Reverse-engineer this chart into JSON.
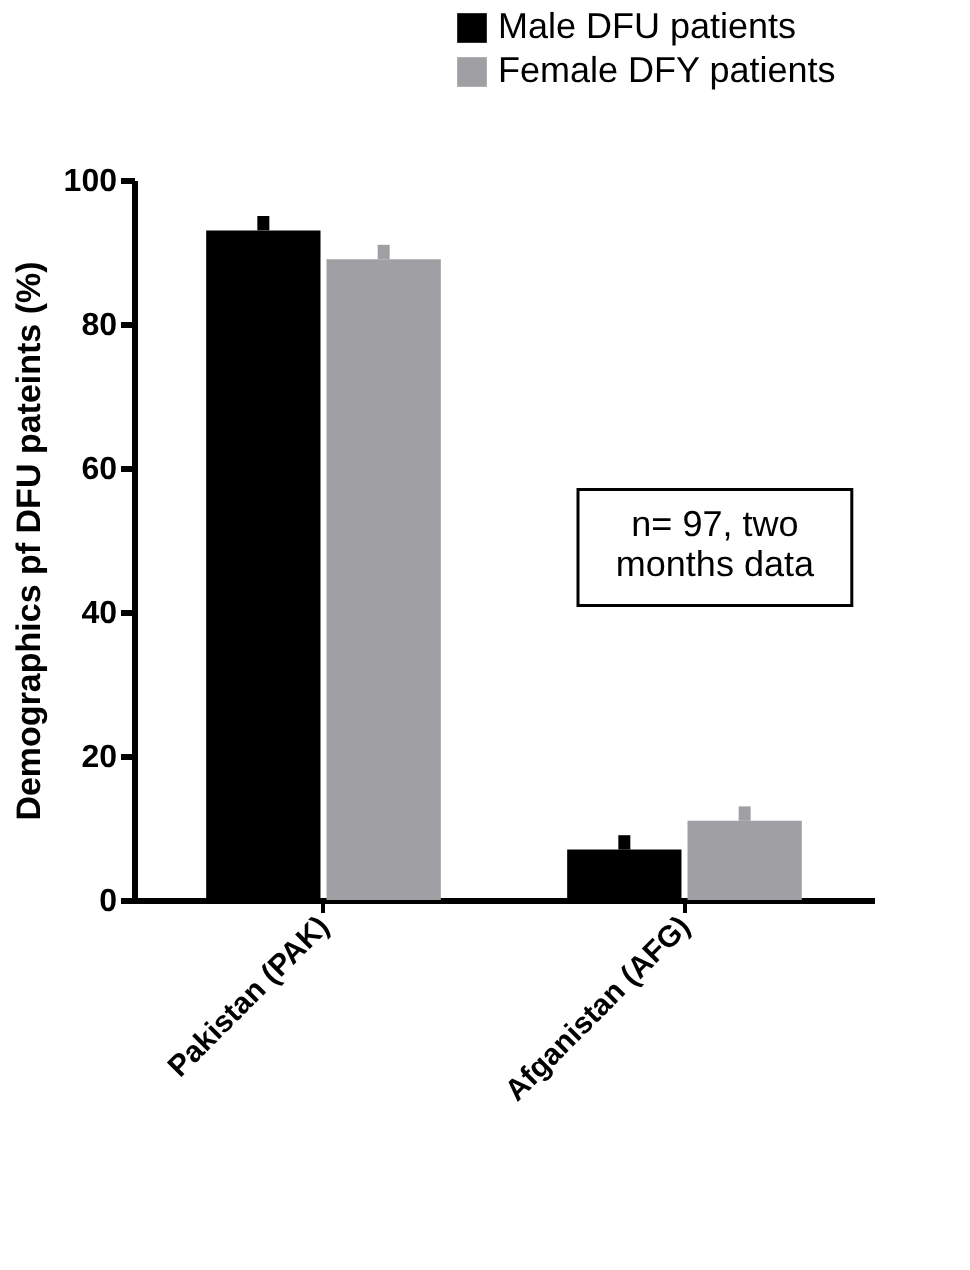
{
  "chart_data": {
    "type": "bar",
    "ylabel": "Demographics pf DFU pateints (%)",
    "categories": [
      "Pakistan (PAK)",
      "Afganistan (AFG)"
    ],
    "series": [
      {
        "name": "Male DFU patients",
        "color": "#000000",
        "values": [
          93,
          7
        ],
        "errors": [
          [
            93,
            95
          ],
          [
            7,
            9
          ]
        ]
      },
      {
        "name": "Female DFY patients",
        "color": "#a0a0a4",
        "values": [
          89,
          11
        ],
        "errors": [
          [
            89,
            91
          ],
          [
            11,
            13
          ]
        ]
      }
    ],
    "ylim": [
      0,
      100
    ],
    "yticks": [
      0,
      20,
      40,
      60,
      80,
      100
    ],
    "annotations": [
      "n= 97,  two\nmonths data"
    ],
    "legend": "top right",
    "grid": false
  }
}
